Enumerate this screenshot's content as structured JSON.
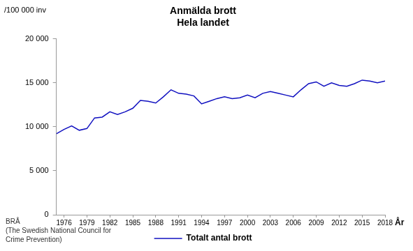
{
  "chart_data": {
    "type": "line",
    "title": "Anmälda brott",
    "subtitle": "Hela landet",
    "y_label": "/100 000 inv",
    "x_label": "År",
    "source": [
      "BRÅ",
      "(The Swedish National Council for",
      "Crime Prevention)"
    ],
    "x": [
      1975,
      1976,
      1977,
      1978,
      1979,
      1980,
      1981,
      1982,
      1983,
      1984,
      1985,
      1986,
      1987,
      1988,
      1989,
      1990,
      1991,
      1992,
      1993,
      1994,
      1995,
      1996,
      1997,
      1998,
      1999,
      2000,
      2001,
      2002,
      2003,
      2004,
      2005,
      2006,
      2007,
      2008,
      2009,
      2010,
      2011,
      2012,
      2013,
      2014,
      2015,
      2016,
      2017,
      2018
    ],
    "series": [
      {
        "name": "Totalt antal brott",
        "color": "#1010c0",
        "marker": "none",
        "line_style": "solid",
        "values": [
          9200,
          9700,
          10100,
          9600,
          9800,
          11000,
          11100,
          11700,
          11400,
          11700,
          12100,
          13000,
          12900,
          12700,
          13400,
          14200,
          13800,
          13700,
          13500,
          12600,
          12900,
          13200,
          13400,
          13200,
          13300,
          13600,
          13300,
          13800,
          14000,
          13800,
          13600,
          13400,
          14200,
          14900,
          15100,
          14600,
          15000,
          14700,
          14600,
          14900,
          15300,
          15200,
          15000,
          15200
        ]
      }
    ],
    "xlim": [
      1975,
      2018
    ],
    "xticks": [
      1976,
      1979,
      1982,
      1985,
      1988,
      1991,
      1994,
      1997,
      2000,
      2003,
      2006,
      2009,
      2012,
      2015,
      2018
    ],
    "ylim": [
      0,
      20000
    ],
    "yticks": [
      0,
      {
        "value": 5000,
        "label": "5 000"
      },
      {
        "value": 10000,
        "label": "10 000"
      },
      {
        "value": 15000,
        "label": "15 000"
      },
      {
        "value": 20000,
        "label": "20 000"
      }
    ],
    "grid": false,
    "legend": "bottom"
  }
}
